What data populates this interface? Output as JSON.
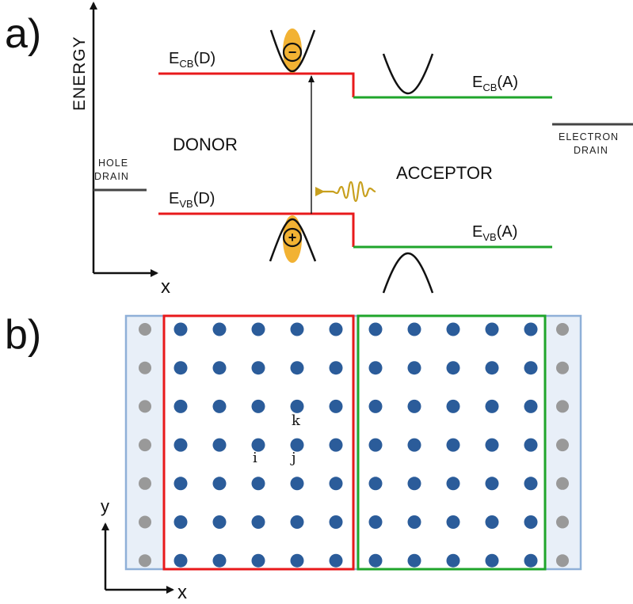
{
  "panel_a": {
    "label": "a)",
    "y_axis_label": "ENERGY",
    "x_axis_label": "x",
    "donor_label": "DONOR",
    "acceptor_label": "ACCEPTOR",
    "hole_drain_line1": "HOLE",
    "hole_drain_line2": "DRAIN",
    "electron_drain_line1": "ELECTRON",
    "electron_drain_line2": "DRAIN",
    "ecb_d": {
      "main": "E",
      "sub": "CB",
      "suffix": "(D)"
    },
    "evb_d": {
      "main": "E",
      "sub": "VB",
      "suffix": "(D)"
    },
    "ecb_a": {
      "main": "E",
      "sub": "CB",
      "suffix": "(A)"
    },
    "evb_a": {
      "main": "E",
      "sub": "VB",
      "suffix": "(A)"
    },
    "electron_symbol": "−",
    "hole_symbol": "+",
    "colors": {
      "donor": "#e8191b",
      "acceptor": "#1fa52b",
      "drain": "#444444",
      "photon": "#c8a01e",
      "particle": "#f2b233"
    }
  },
  "panel_b": {
    "label": "b)",
    "y_axis_label": "y",
    "x_axis_label": "x",
    "site_i": "i",
    "site_j": "j",
    "site_k": "k",
    "lattice": {
      "rows": 7,
      "donor_cols": 5,
      "acceptor_cols": 5,
      "drain_cols_each_side": 1
    },
    "colors": {
      "site": "#2b5c9a",
      "drain_site": "#999999",
      "frame": "#8fb0d8",
      "frame_fill": "#e8eff8",
      "donor_box": "#e8191b",
      "acceptor_box": "#1fa52b"
    }
  }
}
